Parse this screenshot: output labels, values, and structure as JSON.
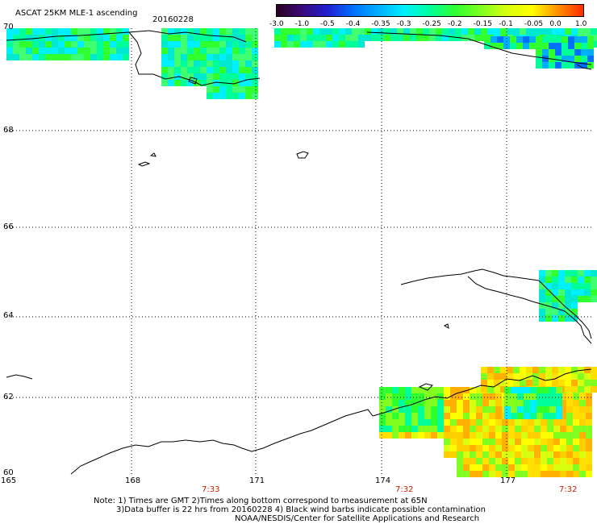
{
  "header": {
    "title": "ASCAT 25KM MLE-1 ascending",
    "date": "20160228"
  },
  "colorbar": {
    "tick_labels": [
      "-3.0",
      "-1.0",
      "-0.5",
      "-0.4",
      "-0.35",
      "-0.3",
      "-0.25",
      "-0.2",
      "-0.15",
      "-0.1",
      "-0.05",
      "0.0",
      "1.0"
    ],
    "colors": [
      "#2a0020",
      "#3a0a7a",
      "#2020d0",
      "#0070ff",
      "#00b0ff",
      "#00f0ff",
      "#00ff9a",
      "#30ff30",
      "#80ff20",
      "#d8ff10",
      "#ffff00",
      "#ff9000",
      "#ff2a00"
    ]
  },
  "map": {
    "lat_labels": [
      "70",
      "68",
      "66",
      "64",
      "62",
      "60"
    ],
    "lon_labels": [
      "165",
      "168",
      "171",
      "174",
      "177"
    ],
    "time_labels": [
      "7:33",
      "7:32",
      "7:32"
    ]
  },
  "footer": {
    "line1": "Note: 1) Times are GMT 2)Times along bottom correspond to measurement at 65N",
    "line2": "3)Data buffer is 22 hrs from 20160228 4) Black wind barbs indicate possible contamination",
    "line3": "NOAA/NESDIS/Center for Satellite Applications and Research"
  }
}
